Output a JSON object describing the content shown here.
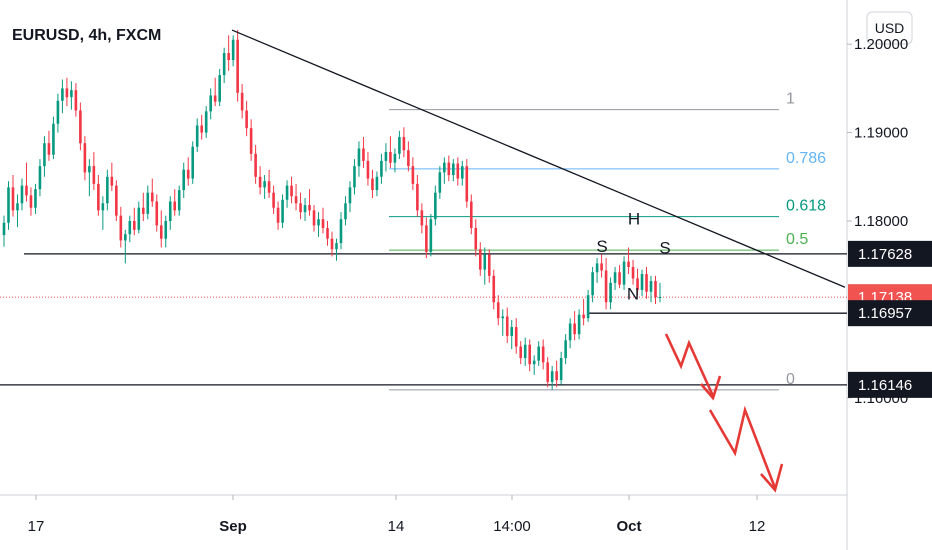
{
  "chart_data": {
    "type": "candlestick",
    "title": "EURUSD, 4h, FXCM",
    "currency": "USD",
    "x_ticks": [
      {
        "label": "17",
        "bold": false
      },
      {
        "label": "Sep",
        "bold": true
      },
      {
        "label": "14",
        "bold": false
      },
      {
        "label": "14:00",
        "bold": false
      },
      {
        "label": "Oct",
        "bold": true
      },
      {
        "label": "12",
        "bold": false
      }
    ],
    "y_ticks": [
      1.2,
      1.19,
      1.18,
      1.16
    ],
    "ylim": [
      1.149,
      1.205
    ],
    "price_tags": [
      {
        "value": "1.17628",
        "bg": "#131722"
      },
      {
        "value": "1.17138",
        "bg": "#f05350"
      },
      {
        "value": "1.16957",
        "bg": "#131722"
      },
      {
        "value": "1.16146",
        "bg": "#131722"
      }
    ],
    "fib_levels": [
      {
        "label": "1",
        "price": 1.1926,
        "color": "#9598a1"
      },
      {
        "label": "0.786",
        "price": 1.1859,
        "color": "#64b5f6"
      },
      {
        "label": "0.618",
        "price": 1.1805,
        "color": "#089981"
      },
      {
        "label": "0.5",
        "price": 1.1767,
        "color": "#4caf50"
      },
      {
        "label": "0",
        "price": 1.1609,
        "color": "#9598a1"
      }
    ],
    "horizontal_levels": [
      1.17628,
      1.16957,
      1.16146
    ],
    "current_price": 1.17138,
    "trendline": {
      "from": [
        232,
        1.2016
      ],
      "to": [
        845,
        1.1725
      ]
    },
    "annotations": [
      {
        "label": "S",
        "x": 602,
        "price": 1.1765
      },
      {
        "label": "H",
        "x": 634,
        "price": 1.1796
      },
      {
        "label": "S",
        "x": 665,
        "price": 1.1763
      },
      {
        "label": "N",
        "x": 633,
        "price": 1.1711
      }
    ],
    "projection_arrow_color": "#e53935",
    "candles": [
      [
        1.1784,
        1.1806,
        1.1771,
        1.1798
      ],
      [
        1.1798,
        1.1845,
        1.179,
        1.1838
      ],
      [
        1.1838,
        1.1852,
        1.1805,
        1.1812
      ],
      [
        1.1812,
        1.183,
        1.1793,
        1.182
      ],
      [
        1.182,
        1.1848,
        1.1812,
        1.184
      ],
      [
        1.184,
        1.1866,
        1.1822,
        1.1829
      ],
      [
        1.1829,
        1.1838,
        1.1806,
        1.1815
      ],
      [
        1.1815,
        1.1842,
        1.1808,
        1.1836
      ],
      [
        1.1836,
        1.187,
        1.1828,
        1.1862
      ],
      [
        1.1862,
        1.1896,
        1.185,
        1.1888
      ],
      [
        1.1888,
        1.1902,
        1.1868,
        1.1875
      ],
      [
        1.1875,
        1.1918,
        1.187,
        1.191
      ],
      [
        1.191,
        1.1944,
        1.19,
        1.1936
      ],
      [
        1.1936,
        1.196,
        1.1922,
        1.195
      ],
      [
        1.195,
        1.1962,
        1.193,
        1.194
      ],
      [
        1.194,
        1.1958,
        1.1926,
        1.1948
      ],
      [
        1.1948,
        1.1956,
        1.1918,
        1.1925
      ],
      [
        1.1925,
        1.1934,
        1.188,
        1.1888
      ],
      [
        1.1888,
        1.1896,
        1.1846,
        1.1855
      ],
      [
        1.1855,
        1.187,
        1.1828,
        1.1862
      ],
      [
        1.1862,
        1.1878,
        1.1835,
        1.1842
      ],
      [
        1.1842,
        1.1852,
        1.1806,
        1.1812
      ],
      [
        1.1812,
        1.1828,
        1.179,
        1.182
      ],
      [
        1.182,
        1.1858,
        1.1812,
        1.185
      ],
      [
        1.185,
        1.1866,
        1.1834,
        1.184
      ],
      [
        1.184,
        1.1846,
        1.18,
        1.1806
      ],
      [
        1.1806,
        1.1816,
        1.177,
        1.1778
      ],
      [
        1.1778,
        1.179,
        1.1752,
        1.1785
      ],
      [
        1.1785,
        1.1806,
        1.1776,
        1.18
      ],
      [
        1.18,
        1.1815,
        1.1784,
        1.179
      ],
      [
        1.179,
        1.1822,
        1.1786,
        1.1815
      ],
      [
        1.1815,
        1.1832,
        1.18,
        1.1808
      ],
      [
        1.1808,
        1.184,
        1.1802,
        1.1832
      ],
      [
        1.1832,
        1.1848,
        1.1816,
        1.1822
      ],
      [
        1.1822,
        1.183,
        1.1788,
        1.1795
      ],
      [
        1.1795,
        1.1812,
        1.177,
        1.178
      ],
      [
        1.178,
        1.1806,
        1.177,
        1.18
      ],
      [
        1.18,
        1.1828,
        1.179,
        1.1822
      ],
      [
        1.1822,
        1.1836,
        1.1806,
        1.1812
      ],
      [
        1.1812,
        1.184,
        1.1806,
        1.1835
      ],
      [
        1.1835,
        1.1866,
        1.1826,
        1.1858
      ],
      [
        1.1858,
        1.1872,
        1.184,
        1.1848
      ],
      [
        1.1848,
        1.189,
        1.1842,
        1.1884
      ],
      [
        1.1884,
        1.1916,
        1.1878,
        1.1908
      ],
      [
        1.1908,
        1.192,
        1.1892,
        1.19
      ],
      [
        1.19,
        1.193,
        1.1894,
        1.1924
      ],
      [
        1.1924,
        1.195,
        1.1915,
        1.1942
      ],
      [
        1.1942,
        1.1962,
        1.193,
        1.1935
      ],
      [
        1.1935,
        1.1972,
        1.193,
        1.1965
      ],
      [
        1.1965,
        1.1996,
        1.1956,
        1.199
      ],
      [
        1.199,
        1.201,
        1.197,
        1.1982
      ],
      [
        1.1982,
        1.201,
        1.1975,
        1.2005
      ],
      [
        1.2005,
        1.2016,
        1.1935,
        1.1945
      ],
      [
        1.1945,
        1.1955,
        1.1916,
        1.1925
      ],
      [
        1.1925,
        1.1936,
        1.1896,
        1.1905
      ],
      [
        1.1905,
        1.1915,
        1.1868,
        1.1876
      ],
      [
        1.1876,
        1.1886,
        1.1842,
        1.185
      ],
      [
        1.185,
        1.1862,
        1.183,
        1.1838
      ],
      [
        1.1838,
        1.1852,
        1.1825,
        1.1845
      ],
      [
        1.1845,
        1.1858,
        1.1826,
        1.1832
      ],
      [
        1.1832,
        1.184,
        1.1808,
        1.1815
      ],
      [
        1.1815,
        1.1822,
        1.179,
        1.1798
      ],
      [
        1.1798,
        1.183,
        1.1792,
        1.1824
      ],
      [
        1.1824,
        1.1846,
        1.1815,
        1.184
      ],
      [
        1.184,
        1.185,
        1.182,
        1.1828
      ],
      [
        1.1828,
        1.1842,
        1.1812,
        1.182
      ],
      [
        1.182,
        1.1832,
        1.1802,
        1.181
      ],
      [
        1.181,
        1.1826,
        1.18,
        1.1818
      ],
      [
        1.1818,
        1.1836,
        1.1806,
        1.1812
      ],
      [
        1.1812,
        1.1818,
        1.1788,
        1.1795
      ],
      [
        1.1795,
        1.181,
        1.1782,
        1.1802
      ],
      [
        1.1802,
        1.1815,
        1.1786,
        1.1792
      ],
      [
        1.1792,
        1.18,
        1.1772,
        1.178
      ],
      [
        1.178,
        1.1788,
        1.176,
        1.1768
      ],
      [
        1.1768,
        1.178,
        1.1755,
        1.1775
      ],
      [
        1.1775,
        1.181,
        1.1768,
        1.1802
      ],
      [
        1.1802,
        1.1828,
        1.1795,
        1.182
      ],
      [
        1.182,
        1.1845,
        1.181,
        1.1838
      ],
      [
        1.1838,
        1.187,
        1.183,
        1.1862
      ],
      [
        1.1862,
        1.189,
        1.185,
        1.1882
      ],
      [
        1.1882,
        1.1895,
        1.186,
        1.1868
      ],
      [
        1.1868,
        1.1878,
        1.184,
        1.1848
      ],
      [
        1.1848,
        1.1858,
        1.1826,
        1.1835
      ],
      [
        1.1835,
        1.1856,
        1.1828,
        1.185
      ],
      [
        1.185,
        1.1876,
        1.1842,
        1.1868
      ],
      [
        1.1868,
        1.1888,
        1.1856,
        1.1878
      ],
      [
        1.1878,
        1.1896,
        1.186,
        1.1866
      ],
      [
        1.1866,
        1.1882,
        1.1855,
        1.1876
      ],
      [
        1.1876,
        1.1902,
        1.187,
        1.1895
      ],
      [
        1.1895,
        1.1906,
        1.1872,
        1.188
      ],
      [
        1.188,
        1.189,
        1.1856,
        1.1862
      ],
      [
        1.1862,
        1.1872,
        1.1835,
        1.1842
      ],
      [
        1.1842,
        1.1852,
        1.1805,
        1.1812
      ],
      [
        1.1812,
        1.182,
        1.1786,
        1.1795
      ],
      [
        1.1795,
        1.1804,
        1.1758,
        1.1765
      ],
      [
        1.1765,
        1.1808,
        1.176,
        1.1802
      ],
      [
        1.1802,
        1.184,
        1.1795,
        1.1832
      ],
      [
        1.1832,
        1.1862,
        1.1825,
        1.1855
      ],
      [
        1.1855,
        1.1872,
        1.1842,
        1.1866
      ],
      [
        1.1866,
        1.1874,
        1.1845,
        1.1852
      ],
      [
        1.1852,
        1.187,
        1.1845,
        1.1865
      ],
      [
        1.1865,
        1.1872,
        1.184,
        1.1848
      ],
      [
        1.1848,
        1.1868,
        1.184,
        1.1862
      ],
      [
        1.1862,
        1.187,
        1.1815,
        1.1822
      ],
      [
        1.1822,
        1.183,
        1.1785,
        1.1792
      ],
      [
        1.1792,
        1.1802,
        1.176,
        1.1768
      ],
      [
        1.1768,
        1.1776,
        1.1738,
        1.1745
      ],
      [
        1.1745,
        1.177,
        1.1728,
        1.1762
      ],
      [
        1.1762,
        1.1768,
        1.173,
        1.1738
      ],
      [
        1.1738,
        1.1745,
        1.17,
        1.1708
      ],
      [
        1.1708,
        1.1716,
        1.1682,
        1.169
      ],
      [
        1.169,
        1.17,
        1.167,
        1.1692
      ],
      [
        1.1692,
        1.1702,
        1.1662,
        1.167
      ],
      [
        1.167,
        1.1688,
        1.1655,
        1.168
      ],
      [
        1.168,
        1.169,
        1.165,
        1.1658
      ],
      [
        1.1658,
        1.1664,
        1.1638,
        1.1645
      ],
      [
        1.1645,
        1.1668,
        1.1636,
        1.166
      ],
      [
        1.166,
        1.1666,
        1.163,
        1.1638
      ],
      [
        1.1638,
        1.1648,
        1.1626,
        1.1642
      ],
      [
        1.1642,
        1.1664,
        1.1636,
        1.1658
      ],
      [
        1.1658,
        1.1666,
        1.1632,
        1.164
      ],
      [
        1.164,
        1.1646,
        1.1612,
        1.1618
      ],
      [
        1.1618,
        1.1636,
        1.1609,
        1.163
      ],
      [
        1.163,
        1.1642,
        1.1612,
        1.162
      ],
      [
        1.162,
        1.1652,
        1.1615,
        1.1645
      ],
      [
        1.1645,
        1.1672,
        1.1638,
        1.1665
      ],
      [
        1.1665,
        1.169,
        1.1656,
        1.1684
      ],
      [
        1.1684,
        1.1698,
        1.1665,
        1.1672
      ],
      [
        1.1672,
        1.17,
        1.1666,
        1.1694
      ],
      [
        1.1694,
        1.1712,
        1.1682,
        1.169
      ],
      [
        1.169,
        1.1722,
        1.1686,
        1.1716
      ],
      [
        1.1716,
        1.1748,
        1.1708,
        1.1742
      ],
      [
        1.1742,
        1.1758,
        1.173,
        1.1752
      ],
      [
        1.1752,
        1.1762,
        1.1736,
        1.1744
      ],
      [
        1.1744,
        1.1758,
        1.17,
        1.1708
      ],
      [
        1.1708,
        1.1736,
        1.17,
        1.173
      ],
      [
        1.173,
        1.1748,
        1.1722,
        1.1742
      ],
      [
        1.1742,
        1.175,
        1.1724,
        1.1728
      ],
      [
        1.1728,
        1.176,
        1.1722,
        1.1754
      ],
      [
        1.1754,
        1.177,
        1.174,
        1.1748
      ],
      [
        1.1748,
        1.1756,
        1.1728,
        1.1735
      ],
      [
        1.1735,
        1.1746,
        1.1716,
        1.1722
      ],
      [
        1.1722,
        1.1745,
        1.1715,
        1.174
      ],
      [
        1.174,
        1.1748,
        1.1712,
        1.172
      ],
      [
        1.172,
        1.1738,
        1.1708,
        1.1732
      ],
      [
        1.1732,
        1.1738,
        1.1706,
        1.1714
      ],
      [
        1.1714,
        1.173,
        1.1708,
        1.1714
      ]
    ]
  }
}
